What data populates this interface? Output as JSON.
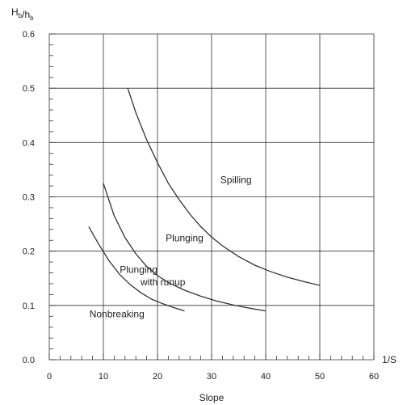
{
  "chart_data": {
    "type": "line",
    "ylabel": "H_b/h_b",
    "xlabel": "Slope",
    "x_axis_end_label": "1/S",
    "xlim": [
      0,
      60
    ],
    "ylim": [
      0,
      0.6
    ],
    "x_major_ticks": [
      0,
      10,
      20,
      30,
      40,
      50,
      60
    ],
    "y_major_ticks": [
      0.0,
      0.1,
      0.2,
      0.3,
      0.4,
      0.5,
      0.6
    ],
    "x_tick_labels": [
      "0",
      "10",
      "20",
      "30",
      "40",
      "50",
      "60"
    ],
    "y_tick_labels": [
      "0.0",
      "0.1",
      "0.2",
      "0.3",
      "0.4",
      "0.5",
      "0.6"
    ],
    "x_minor_step": 2,
    "y_minor_step": 0.02,
    "grid": true,
    "series": [
      {
        "x": [
          7.3,
          9,
          11,
          13,
          15,
          17,
          19,
          21,
          23,
          25
        ],
        "y": [
          0.245,
          0.215,
          0.183,
          0.157,
          0.138,
          0.123,
          0.111,
          0.103,
          0.096,
          0.09
        ]
      },
      {
        "x": [
          10,
          11,
          12,
          14,
          16,
          18,
          20,
          22,
          25,
          28,
          31,
          34,
          37,
          40
        ],
        "y": [
          0.325,
          0.295,
          0.265,
          0.225,
          0.195,
          0.172,
          0.155,
          0.142,
          0.128,
          0.117,
          0.108,
          0.101,
          0.095,
          0.09
        ]
      },
      {
        "x": [
          14.5,
          16,
          18,
          20,
          22,
          24,
          26,
          28,
          30,
          32,
          35,
          38,
          41,
          44,
          47,
          50
        ],
        "y": [
          0.5,
          0.455,
          0.405,
          0.363,
          0.325,
          0.295,
          0.268,
          0.245,
          0.226,
          0.21,
          0.19,
          0.174,
          0.162,
          0.152,
          0.144,
          0.137
        ]
      }
    ],
    "annotations": [
      {
        "text": "Spilling",
        "x": 34.5,
        "y": 0.325
      },
      {
        "text": "Plunging",
        "x": 25,
        "y": 0.218
      },
      {
        "text": "Plunging",
        "x": 16.5,
        "y": 0.16
      },
      {
        "text": "with runup",
        "x": 21,
        "y": 0.137
      },
      {
        "text": "Nonbreaking",
        "x": 12.5,
        "y": 0.078
      }
    ]
  }
}
